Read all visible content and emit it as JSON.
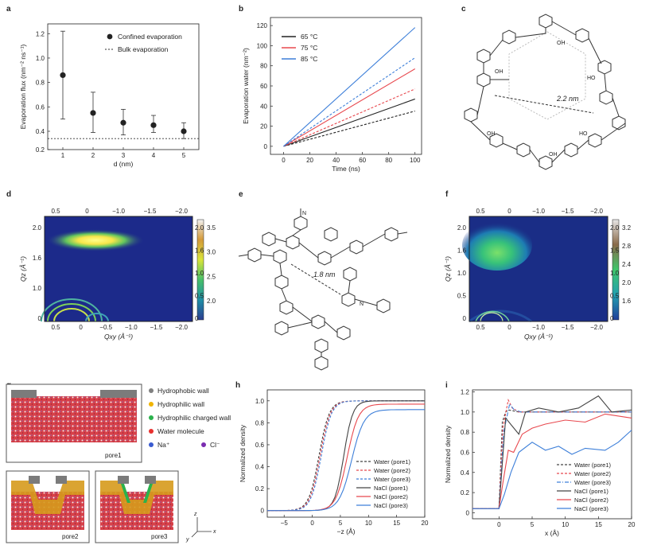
{
  "panels": {
    "a": {
      "label": "a",
      "chart_data": {
        "type": "scatter",
        "x": [
          1,
          2,
          3,
          4,
          5
        ],
        "y": [
          0.86,
          0.55,
          0.47,
          0.45,
          0.4
        ],
        "err_low": [
          0.5,
          0.39,
          0.37,
          0.39,
          0.34
        ],
        "err_high": [
          1.22,
          0.72,
          0.58,
          0.53,
          0.47
        ],
        "bulk": 0.34,
        "xlabel": "d (nm)",
        "ylabel": "Evaporation flux (nm⁻² ns⁻¹)",
        "xticks": [
          "1",
          "2",
          "3",
          "4",
          "5"
        ],
        "yticks": [
          "0.2",
          "0.4",
          "0.6",
          "0.8",
          "1.0",
          "1.2"
        ],
        "legend": [
          "Confined evaporation",
          "Bulk evaporation"
        ]
      }
    },
    "b": {
      "label": "b",
      "chart_data": {
        "type": "line",
        "xlabel": "Time (ns)",
        "ylabel": "Evaporation water (nm⁻²)",
        "xticks": [
          "0",
          "20",
          "40",
          "60",
          "80",
          "100"
        ],
        "yticks": [
          "0",
          "20",
          "40",
          "60",
          "80",
          "100",
          "120"
        ],
        "series": [
          {
            "name": "65 °C",
            "color": "#222222",
            "solid_end": 47,
            "dash_end": 35
          },
          {
            "name": "75 °C",
            "color": "#e8484e",
            "solid_end": 77,
            "dash_end": 57
          },
          {
            "name": "85 °C",
            "color": "#3d7fd9",
            "solid_end": 118,
            "dash_end": 88
          }
        ]
      }
    },
    "c": {
      "label": "c",
      "distance": "2.2 nm",
      "oh": "OH",
      "ho": "HO",
      "n": "N"
    },
    "d": {
      "label": "d",
      "xlabel": "Qxy (Å⁻¹)",
      "ylabel": "Qz (Å⁻¹)",
      "top_ticks": [
        "0.5",
        "0",
        "−1.0",
        "−1.5",
        "−2.0"
      ],
      "bottom_ticks": [
        "0.5",
        "0",
        "−0.5",
        "−1.0",
        "−1.5",
        "−2.0"
      ],
      "left_ticks": [
        "2.0",
        "1.6",
        "1.0",
        "0"
      ],
      "right_ticks": [
        "2.0",
        "1.6",
        "1.0",
        "0.5",
        "0"
      ],
      "colorbar": [
        "3.5",
        "3.0",
        "2.5",
        "2.0"
      ]
    },
    "e": {
      "label": "e",
      "distance": "1.8 nm",
      "n": "N"
    },
    "f": {
      "label": "f",
      "xlabel": "Qxy (Å⁻¹)",
      "ylabel": "Qz (Å⁻¹)",
      "top_ticks": [
        "0.5",
        "0",
        "−1.0",
        "−1.5",
        "−2.0"
      ],
      "bottom_ticks": [
        "0.5",
        "0",
        "−1.0",
        "−1.5",
        "−2.0"
      ],
      "left_ticks": [
        "2.0",
        "1.6",
        "1.0",
        "0.5",
        "0"
      ],
      "right_ticks": [
        "2.0",
        "1.5",
        "1.0",
        "0.5",
        "0"
      ],
      "colorbar": [
        "3.2",
        "2.8",
        "2.4",
        "2.0",
        "1.6"
      ]
    },
    "g": {
      "label": "g",
      "legend": [
        "Hydrophobic wall",
        "Hydrophilic wall",
        "Hydrophilic charged wall",
        "Water molecule",
        "Na⁺",
        "Cl⁻"
      ],
      "colors": [
        "#808080",
        "#f0b400",
        "#2bb24c",
        "#e8302e",
        "#3a5bd0",
        "#7a2db0"
      ],
      "pores": [
        "pore1",
        "pore2",
        "pore3"
      ],
      "axes": [
        "z",
        "y",
        "x"
      ]
    },
    "h": {
      "label": "h",
      "chart_data": {
        "type": "line",
        "xlabel": "−z (Å)",
        "ylabel": "Normalized density",
        "xticks": [
          "−5",
          "0",
          "5",
          "10",
          "15",
          "20"
        ],
        "yticks": [
          "0",
          "0.2",
          "0.4",
          "0.6",
          "0.8",
          "1.0"
        ],
        "series": [
          {
            "name": "Water (pore1)",
            "color": "#444444",
            "style": "dashed"
          },
          {
            "name": "Water (pore2)",
            "color": "#e8484e",
            "style": "dashed"
          },
          {
            "name": "Water (pore3)",
            "color": "#3d7fd9",
            "style": "dashed"
          },
          {
            "name": "NaCl (pore1)",
            "color": "#444444",
            "style": "solid"
          },
          {
            "name": "NaCl (pore2)",
            "color": "#e8484e",
            "style": "solid"
          },
          {
            "name": "NaCl (pore3)",
            "color": "#3d7fd9",
            "style": "solid"
          }
        ]
      }
    },
    "i": {
      "label": "i",
      "chart_data": {
        "type": "line",
        "xlabel": "x (Å)",
        "ylabel": "Normalized density",
        "xticks": [
          "0",
          "5",
          "10",
          "15",
          "20"
        ],
        "yticks": [
          "0",
          "0.2",
          "0.4",
          "0.6",
          "0.8",
          "1.0",
          "1.2"
        ],
        "series": [
          {
            "name": "Water (pore1)",
            "color": "#444444",
            "style": "dashed"
          },
          {
            "name": "Water (pore2)",
            "color": "#e8484e",
            "style": "dashed"
          },
          {
            "name": "Water (pore3)",
            "color": "#3d7fd9",
            "style": "dashdot"
          },
          {
            "name": "NaCl (pore1)",
            "color": "#444444",
            "style": "solid"
          },
          {
            "name": "NaCl (pore2)",
            "color": "#e8484e",
            "style": "solid"
          },
          {
            "name": "NaCl (pore3)",
            "color": "#3d7fd9",
            "style": "solid"
          }
        ]
      }
    }
  }
}
